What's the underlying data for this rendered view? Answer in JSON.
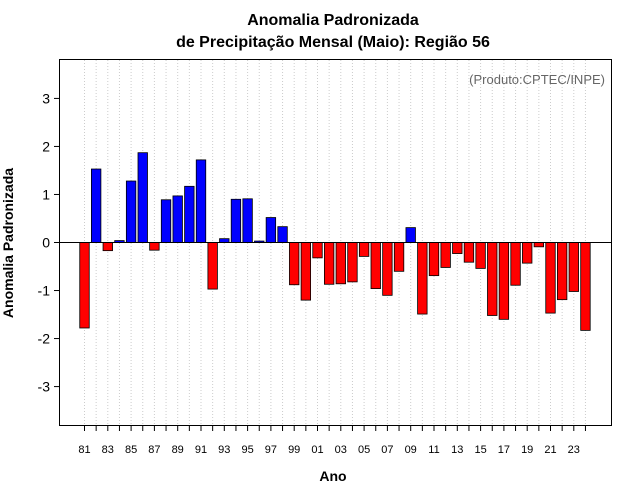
{
  "chart_data": {
    "type": "bar",
    "title": "Anomalia Padronizada",
    "subtitle": "de Precipitação Mensal (Maio): Região 56",
    "xlabel": "Ano",
    "ylabel": "Anomalia Padronizada",
    "credit": "(Produto:CPTEC/INPE)",
    "ylim": [
      -3.8,
      3.8
    ],
    "yticks": [
      -3,
      -2,
      -1,
      0,
      1,
      2,
      3
    ],
    "ytick_labels": [
      "-3",
      "-2",
      "-1",
      "0",
      "1",
      "2",
      "3"
    ],
    "grid": "vertical dotted",
    "colors": {
      "positive": "#0000ff",
      "negative": "#ff0000"
    },
    "categories": [
      "1981",
      "1982",
      "1983",
      "1984",
      "1985",
      "1986",
      "1987",
      "1988",
      "1989",
      "1990",
      "1991",
      "1992",
      "1993",
      "1994",
      "1995",
      "1996",
      "1997",
      "1998",
      "1999",
      "2000",
      "2001",
      "2002",
      "2003",
      "2004",
      "2005",
      "2006",
      "2007",
      "2008",
      "2009",
      "2010",
      "2011",
      "2012",
      "2013",
      "2014",
      "2015",
      "2016",
      "2017",
      "2018",
      "2019",
      "2020",
      "2021",
      "2022",
      "2023",
      "2024"
    ],
    "values": [
      -1.78,
      1.53,
      -0.17,
      0.04,
      1.28,
      1.87,
      -0.16,
      0.89,
      0.97,
      1.17,
      1.72,
      -0.97,
      0.08,
      0.9,
      0.91,
      0.03,
      0.52,
      0.33,
      -0.88,
      -1.2,
      -0.32,
      -0.87,
      -0.86,
      -0.82,
      -0.29,
      -0.96,
      -1.1,
      -0.6,
      0.31,
      -1.49,
      -0.69,
      -0.52,
      -0.23,
      -0.41,
      -0.54,
      -1.52,
      -1.6,
      -0.89,
      -0.43,
      -0.09,
      -1.47,
      -1.19,
      -1.02,
      -1.83
    ],
    "xtick_labels": [
      "81",
      "83",
      "85",
      "87",
      "89",
      "91",
      "93",
      "95",
      "97",
      "99",
      "01",
      "03",
      "05",
      "07",
      "09",
      "11",
      "13",
      "15",
      "17",
      "19",
      "21",
      "23"
    ]
  }
}
